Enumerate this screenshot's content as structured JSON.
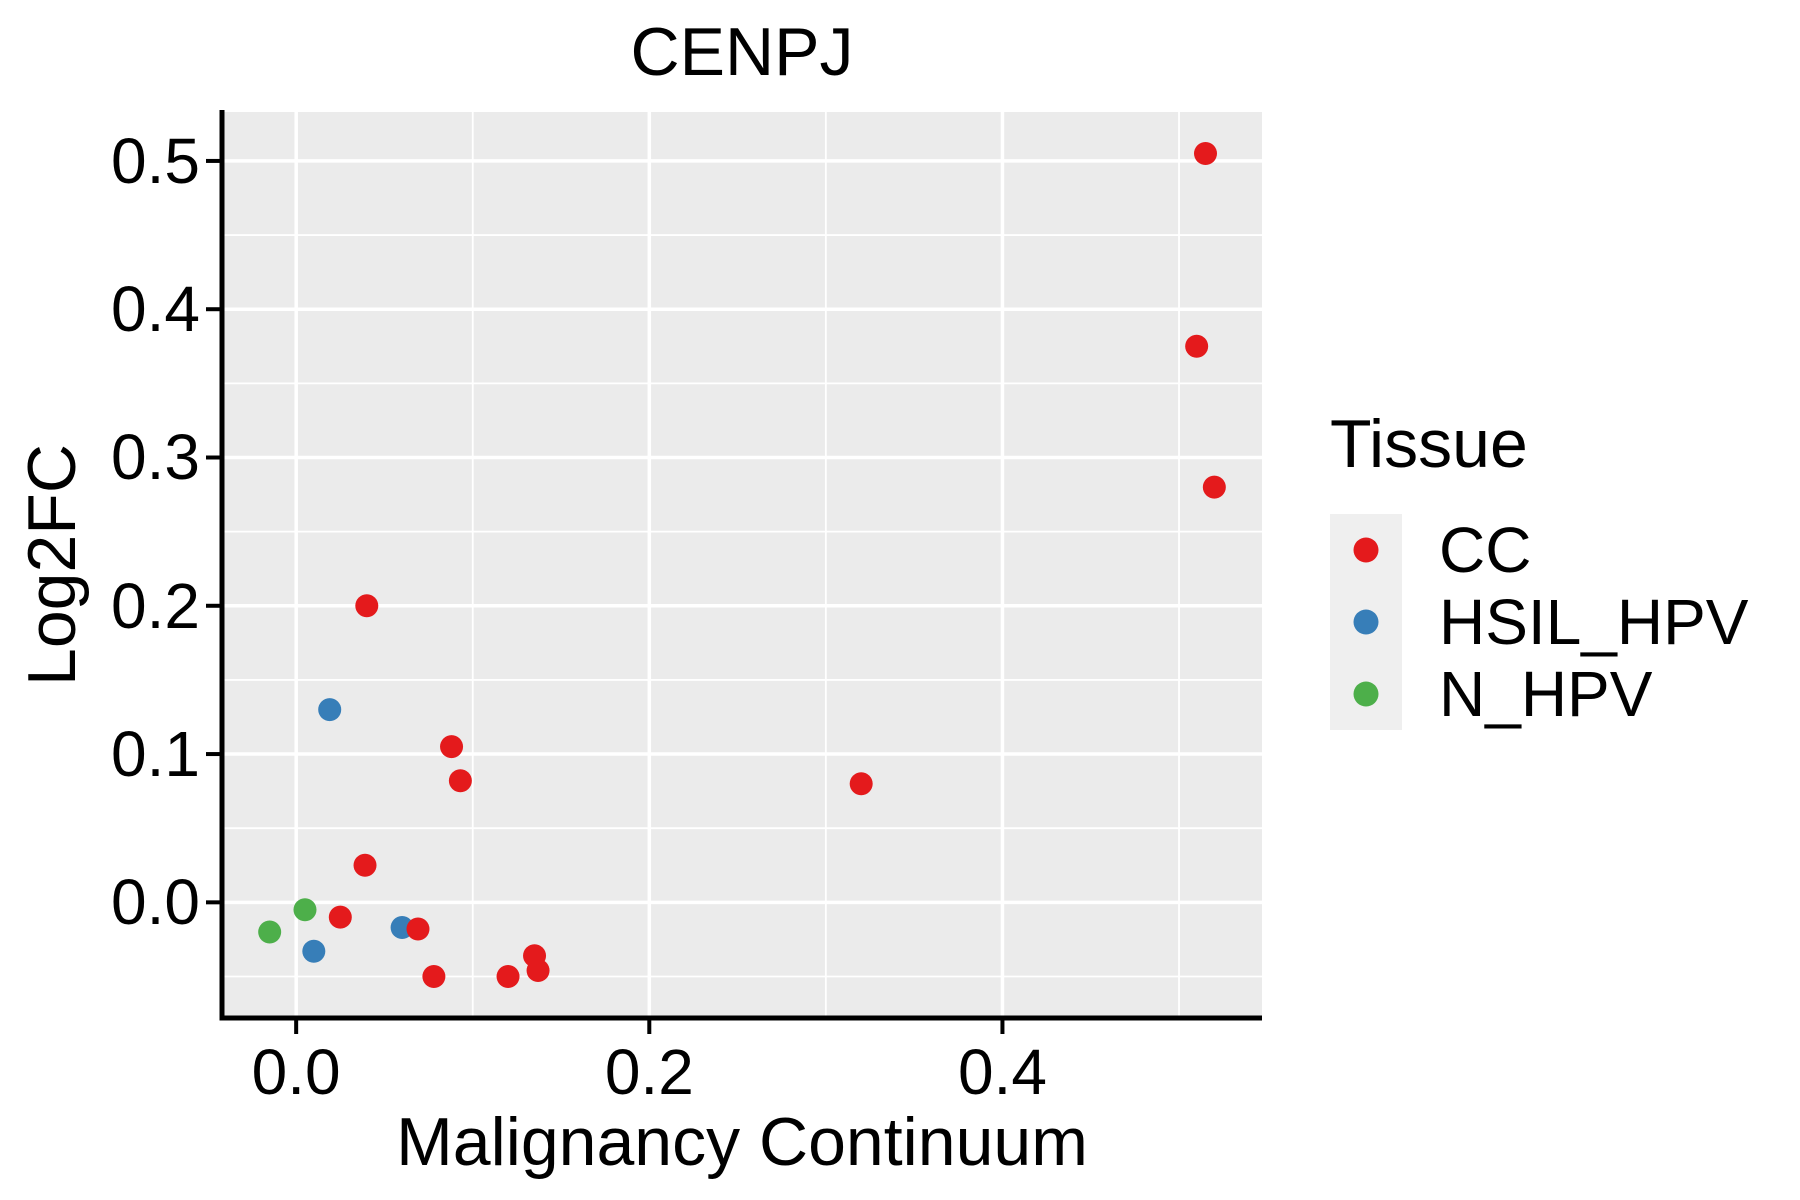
{
  "chart_data": {
    "type": "scatter",
    "title": "CENPJ",
    "xlabel": "Malignancy Continuum",
    "ylabel": "Log2FC",
    "xlim": [
      -0.042,
      0.547
    ],
    "ylim": [
      -0.078,
      0.533
    ],
    "grid": "on",
    "panel_background": "#ebebeb",
    "grid_color": "#ffffff",
    "axis_color": "#000000",
    "x_major_ticks": [
      {
        "v": 0.0,
        "label": "0.0"
      },
      {
        "v": 0.2,
        "label": "0.2"
      },
      {
        "v": 0.4,
        "label": "0.4"
      }
    ],
    "y_major_ticks": [
      {
        "v": 0.0,
        "label": "0.0"
      },
      {
        "v": 0.1,
        "label": "0.1"
      },
      {
        "v": 0.2,
        "label": "0.2"
      },
      {
        "v": 0.3,
        "label": "0.3"
      },
      {
        "v": 0.4,
        "label": "0.4"
      },
      {
        "v": 0.5,
        "label": "0.5"
      }
    ],
    "x_minor_ticks": [
      0.1,
      0.3,
      0.5
    ],
    "y_minor_ticks": [
      -0.05,
      0.05,
      0.15,
      0.25,
      0.35,
      0.45
    ],
    "series": [
      {
        "name": "N_HPV",
        "color": "#4daf4a",
        "points": [
          [
            0.005,
            -0.005
          ],
          [
            -0.015,
            -0.02
          ]
        ]
      },
      {
        "name": "HSIL_HPV",
        "color": "#377eb8",
        "points": [
          [
            0.019,
            0.13
          ],
          [
            0.06,
            -0.017
          ],
          [
            0.01,
            -0.033
          ]
        ]
      },
      {
        "name": "CC",
        "color": "#e41a1c",
        "points": [
          [
            0.515,
            0.505
          ],
          [
            0.51,
            0.375
          ],
          [
            0.52,
            0.28
          ],
          [
            0.04,
            0.2
          ],
          [
            0.088,
            0.105
          ],
          [
            0.093,
            0.082
          ],
          [
            0.32,
            0.08
          ],
          [
            0.039,
            0.025
          ],
          [
            0.025,
            -0.01
          ],
          [
            0.069,
            -0.018
          ],
          [
            0.078,
            -0.05
          ],
          [
            0.12,
            -0.05
          ],
          [
            0.135,
            -0.036
          ],
          [
            0.137,
            -0.046
          ]
        ]
      }
    ]
  },
  "legend": {
    "title": "Tissue",
    "items": [
      {
        "label": "CC",
        "color": "#e41a1c"
      },
      {
        "label": "HSIL_HPV",
        "color": "#377eb8"
      },
      {
        "label": "N_HPV",
        "color": "#4daf4a"
      }
    ]
  }
}
